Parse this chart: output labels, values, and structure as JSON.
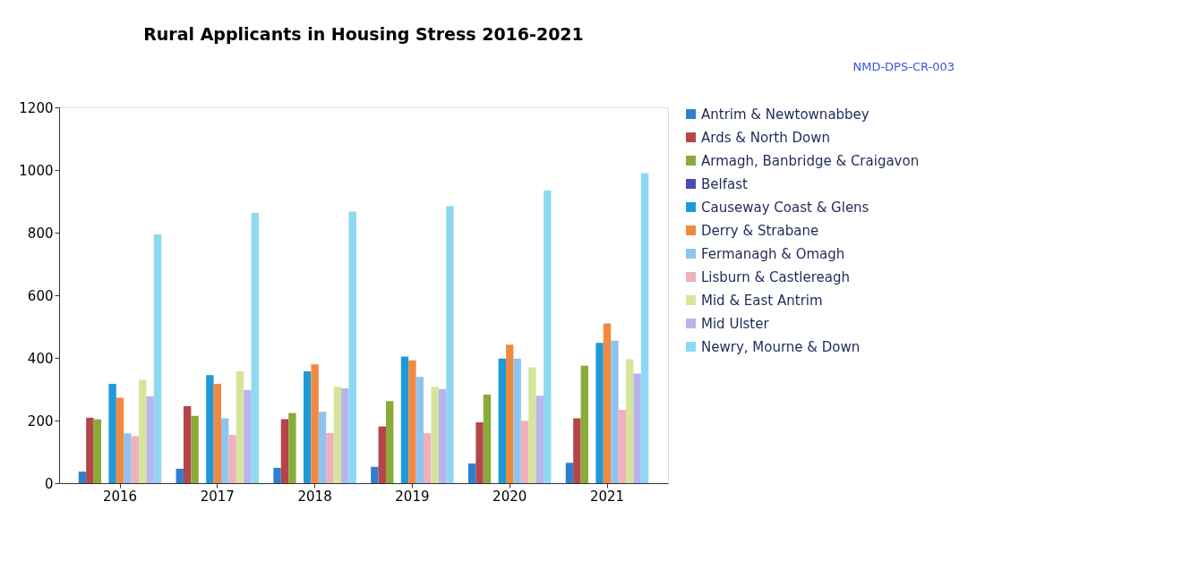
{
  "chart_data": {
    "type": "bar",
    "title": "Rural Applicants in Housing Stress 2016-2021",
    "categories": [
      "2016",
      "2017",
      "2018",
      "2019",
      "2020",
      "2021"
    ],
    "series": [
      {
        "name": "Antrim & Newtownabbey",
        "color": "#2f7fd0",
        "values": [
          37,
          46,
          49,
          52,
          63,
          65
        ]
      },
      {
        "name": "Ards & North Down",
        "color": "#b5454a",
        "values": [
          209,
          246,
          204,
          181,
          194,
          207
        ]
      },
      {
        "name": "Armagh, Banbridge & Craigavon",
        "color": "#8aab3a",
        "values": [
          204,
          215,
          224,
          262,
          283,
          375
        ]
      },
      {
        "name": "Belfast",
        "color": "#4b4bb8",
        "values": [
          null,
          null,
          null,
          null,
          null,
          null
        ]
      },
      {
        "name": "Causeway Coast & Glens",
        "color": "#1f9ad6",
        "values": [
          317,
          345,
          357,
          404,
          398,
          448
        ]
      },
      {
        "name": "Derry & Strabane",
        "color": "#f08a40",
        "values": [
          273,
          317,
          379,
          392,
          442,
          510
        ]
      },
      {
        "name": "Fermanagh & Omagh",
        "color": "#8fc4f0",
        "values": [
          159,
          207,
          228,
          339,
          398,
          455
        ]
      },
      {
        "name": "Lisburn & Castlereagh",
        "color": "#f0b0bc",
        "values": [
          150,
          154,
          160,
          159,
          199,
          234
        ]
      },
      {
        "name": "Mid & East Antrim",
        "color": "#d6e59a",
        "values": [
          330,
          357,
          308,
          308,
          370,
          396
        ]
      },
      {
        "name": "Mid Ulster",
        "color": "#b8b4ee",
        "values": [
          277,
          297,
          303,
          301,
          279,
          350
        ]
      },
      {
        "name": "Newry, Mourne & Down",
        "color": "#8fd8f4",
        "values": [
          795,
          863,
          867,
          885,
          934,
          990
        ]
      }
    ],
    "ylim": [
      0,
      1200
    ],
    "yticks": [
      0,
      200,
      400,
      600,
      800,
      1000,
      1200
    ],
    "grid": false,
    "legend": "right",
    "annotations": [
      "NMD-DPS-CR-003"
    ]
  }
}
